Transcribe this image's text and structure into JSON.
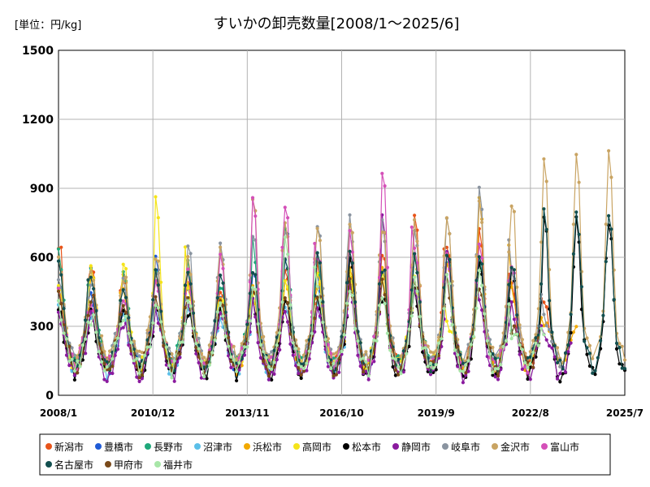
{
  "chart_data": {
    "type": "line",
    "title": "すいかの卸売数量[2008/1～2025/6]",
    "unit_label": "[単位：円/kg]",
    "ylim": [
      0,
      1500
    ],
    "y_ticks": [
      "0",
      "300",
      "600",
      "900",
      "1200",
      "1500"
    ],
    "x_ticks": [
      "2008/1",
      "2010/12",
      "2013/11",
      "2016/10",
      "2019/9",
      "2022/8",
      "2025/7"
    ],
    "grid": true,
    "legend_placement": "bottom",
    "series": [
      {
        "name": "新潟市",
        "color": "#e8541a",
        "offset": 0,
        "yearly_peaks": [
          680,
          570,
          500,
          560,
          500,
          450,
          500,
          520,
          560,
          600,
          640,
          810,
          640,
          720,
          480,
          440
        ],
        "ends": 2023.2
      },
      {
        "name": "豊橋市",
        "color": "#1f5bd6",
        "offset": -20,
        "yearly_peaks": [
          520,
          450,
          420,
          600,
          470,
          420,
          560,
          600,
          540,
          500,
          480,
          520,
          500,
          560,
          460,
          0
        ],
        "ends": 2017.8
      },
      {
        "name": "長野市",
        "color": "#1fa87a",
        "offset": 10,
        "yearly_peaks": [
          610,
          520,
          500,
          560,
          560,
          480,
          650,
          740,
          590,
          500,
          520,
          620,
          600,
          560,
          0,
          0
        ],
        "ends": 2022.0
      },
      {
        "name": "沼津市",
        "color": "#5bbfe8",
        "offset": -30,
        "yearly_peaks": [
          440,
          400,
          380,
          420,
          400,
          380,
          430,
          450,
          420,
          0,
          0,
          0,
          0,
          0,
          0,
          0
        ],
        "ends": 2016.8
      },
      {
        "name": "浜松市",
        "color": "#f2a900",
        "offset": -10,
        "yearly_peaks": [
          500,
          560,
          480,
          500,
          480,
          420,
          460,
          520,
          500,
          560,
          580,
          600,
          620,
          880,
          460,
          0
        ],
        "ends": 2024.0
      },
      {
        "name": "高岡市",
        "color": "#f5e41a",
        "offset": 0,
        "yearly_peaks": [
          480,
          560,
          570,
          840,
          480,
          420,
          460,
          500,
          520,
          540,
          500,
          520,
          0,
          0,
          0,
          0
        ],
        "ends": 2020.5
      },
      {
        "name": "松本市",
        "color": "#000000",
        "offset": -40,
        "yearly_peaks": [
          400,
          420,
          380,
          440,
          420,
          420,
          460,
          480,
          470,
          620,
          480,
          500,
          660,
          600,
          580,
          810
        ],
        "ends": 2025.5
      },
      {
        "name": "静岡市",
        "color": "#8a1a9e",
        "offset": -50,
        "yearly_peaks": [
          420,
          400,
          360,
          420,
          420,
          400,
          440,
          420,
          460,
          520,
          860,
          480,
          680,
          480,
          440,
          0
        ],
        "ends": 2023.8
      },
      {
        "name": "岐阜市",
        "color": "#8a94a0",
        "offset": 20,
        "yearly_peaks": [
          500,
          480,
          470,
          520,
          620,
          640,
          700,
          720,
          730,
          750,
          720,
          700,
          740,
          860,
          560,
          0
        ],
        "ends": 2023.5
      },
      {
        "name": "金沢市",
        "color": "#c9a463",
        "offset": 30,
        "yearly_peaks": [
          560,
          520,
          500,
          600,
          560,
          600,
          830,
          720,
          700,
          740,
          720,
          740,
          780,
          820,
          830,
          1040
        ],
        "ends": 2025.5
      },
      {
        "name": "富山市",
        "color": "#d450b8",
        "offset": 0,
        "yearly_peaks": [
          460,
          420,
          440,
          520,
          520,
          590,
          860,
          850,
          600,
          700,
          1010,
          640,
          620,
          660,
          560,
          0
        ],
        "ends": 2022.5
      },
      {
        "name": "名古屋市",
        "color": "#124f4f",
        "offset": 0,
        "yearly_peaks": [
          600,
          520,
          480,
          560,
          560,
          520,
          560,
          580,
          600,
          620,
          560,
          600,
          620,
          600,
          570,
          800
        ],
        "ends": 2025.5
      },
      {
        "name": "甲府市",
        "color": "#7a4a1a",
        "offset": -20,
        "yearly_peaks": [
          480,
          460,
          400,
          440,
          460,
          460,
          480,
          460,
          480,
          500,
          520,
          500,
          520,
          500,
          0,
          0
        ],
        "ends": 2022.8
      },
      {
        "name": "福井市",
        "color": "#a8e6a8",
        "offset": -20,
        "yearly_peaks": [
          400,
          360,
          360,
          420,
          420,
          400,
          520,
          720,
          500,
          480,
          460,
          520,
          540,
          560,
          0,
          0
        ],
        "ends": 2023.0
      }
    ]
  }
}
